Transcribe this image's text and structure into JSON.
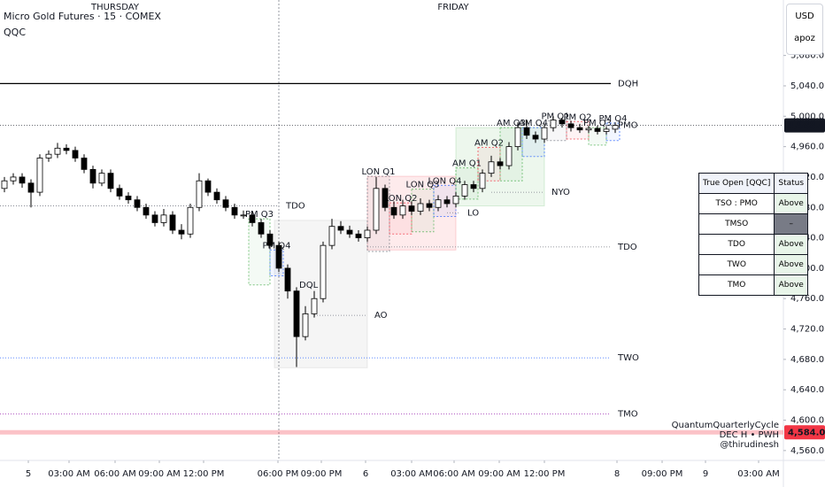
{
  "header": {
    "title": "Micro Gold Futures · 15 · COMEX",
    "indicator": "QQC",
    "currency": "USD",
    "user": "apoz"
  },
  "chart_data": {
    "type": "candlestick",
    "xlim": [
      -0.5,
      88
    ],
    "ylim": [
      4547,
      5153
    ],
    "up_color": "#ffffff",
    "down_color": "#000000",
    "xticks": [
      {
        "value": 2.7,
        "label": "5"
      },
      {
        "value": 7.3,
        "label": "03:00 AM"
      },
      {
        "value": 12.5,
        "label": "06:00 AM"
      },
      {
        "value": 17.5,
        "label": "09:00 AM"
      },
      {
        "value": 22.5,
        "label": "12:00 PM"
      },
      {
        "value": 30.9,
        "label": "06:00 PM"
      },
      {
        "value": 35.8,
        "label": "09:00 PM"
      },
      {
        "value": 40.8,
        "label": "6"
      },
      {
        "value": 46,
        "label": "03:00 AM"
      },
      {
        "value": 50.8,
        "label": "06:00 AM"
      },
      {
        "value": 55.9,
        "label": "09:00 AM"
      },
      {
        "value": 61,
        "label": "12:00 PM"
      },
      {
        "value": 69.2,
        "label": "8"
      },
      {
        "value": 74.3,
        "label": "09:00 PM"
      },
      {
        "value": 79.2,
        "label": "9"
      },
      {
        "value": 85.2,
        "label": "03:00 AM"
      }
    ],
    "yticks": [
      {
        "value": 4560,
        "label": "4,560.0"
      },
      {
        "value": 4600,
        "label": "4,600.0"
      },
      {
        "value": 4640,
        "label": "4,640.0"
      },
      {
        "value": 4680,
        "label": "4,680.0"
      },
      {
        "value": 4720,
        "label": "4,720.0"
      },
      {
        "value": 4760,
        "label": "4,760.0"
      },
      {
        "value": 4800,
        "label": "4,800.0"
      },
      {
        "value": 4840,
        "label": "4,840.0"
      },
      {
        "value": 4880,
        "label": "4,880.0"
      },
      {
        "value": 4920,
        "label": "4,920.0"
      },
      {
        "value": 4960,
        "label": "4,960.0"
      },
      {
        "value": 5000,
        "label": "5,000.0"
      },
      {
        "value": 5040,
        "label": "5,040.0"
      },
      {
        "value": 5080,
        "label": "5,080.0"
      }
    ],
    "day_labels": [
      {
        "label": "THURSDAY",
        "x": 12.5
      },
      {
        "label": "FRIDAY",
        "x": 50.7
      }
    ],
    "open": [
      4905,
      4915,
      4920,
      4912,
      4900,
      4945,
      4950,
      4958,
      4955,
      4945,
      4930,
      4912,
      4925,
      4905,
      4895,
      4890,
      4880,
      4870,
      4860,
      4870,
      4850,
      4845,
      4880,
      4915,
      4900,
      4890,
      4880,
      4870,
      4870,
      4860,
      4845,
      4830,
      4800,
      4770,
      4710,
      4740,
      4760,
      4830,
      4855,
      4850,
      4845,
      4840,
      4850,
      4905,
      4880,
      4870,
      4882,
      4875,
      4885,
      4880,
      4890,
      4885,
      4895,
      4910,
      4905,
      4925,
      4940,
      4935,
      4960,
      4985,
      4975,
      4970,
      4985,
      4995,
      4990,
      4985,
      4982,
      4984,
      4980,
      4983
    ],
    "high": [
      4920,
      4925,
      4925,
      4917,
      4950,
      4955,
      4965,
      4963,
      4960,
      4950,
      4935,
      4930,
      4930,
      4910,
      4900,
      4895,
      4885,
      4875,
      4878,
      4875,
      4858,
      4885,
      4925,
      4918,
      4905,
      4895,
      4885,
      4876,
      4874,
      4865,
      4850,
      4835,
      4805,
      4775,
      4750,
      4770,
      4835,
      4865,
      4862,
      4856,
      4850,
      4855,
      4920,
      4910,
      4888,
      4890,
      4888,
      4892,
      4890,
      4896,
      4895,
      4900,
      4915,
      4915,
      4930,
      4948,
      4945,
      4966,
      4992,
      4995,
      4980,
      4990,
      5000,
      4998,
      4994,
      4990,
      4988,
      4988,
      4987,
      4992
    ],
    "low": [
      4900,
      4910,
      4906,
      4880,
      4895,
      4940,
      4945,
      4950,
      4940,
      4925,
      4905,
      4908,
      4900,
      4890,
      4885,
      4875,
      4865,
      4855,
      4855,
      4845,
      4838,
      4840,
      4875,
      4895,
      4885,
      4875,
      4865,
      4865,
      4855,
      4840,
      4825,
      4795,
      4760,
      4670,
      4705,
      4735,
      4755,
      4825,
      4845,
      4840,
      4835,
      4835,
      4845,
      4875,
      4865,
      4865,
      4870,
      4870,
      4875,
      4875,
      4880,
      4880,
      4890,
      4900,
      4900,
      4920,
      4930,
      4930,
      4955,
      4970,
      4965,
      4965,
      4980,
      4985,
      4980,
      4978,
      4978,
      4976,
      4976,
      4978
    ],
    "close": [
      4915,
      4920,
      4912,
      4900,
      4945,
      4950,
      4958,
      4955,
      4945,
      4930,
      4912,
      4925,
      4905,
      4895,
      4890,
      4880,
      4870,
      4860,
      4870,
      4850,
      4845,
      4880,
      4915,
      4900,
      4890,
      4880,
      4870,
      4870,
      4860,
      4845,
      4830,
      4800,
      4770,
      4710,
      4740,
      4760,
      4830,
      4855,
      4850,
      4845,
      4840,
      4850,
      4905,
      4880,
      4870,
      4882,
      4875,
      4885,
      4880,
      4890,
      4885,
      4895,
      4910,
      4905,
      4925,
      4940,
      4935,
      4960,
      4985,
      4975,
      4970,
      4985,
      4995,
      4990,
      4985,
      4982,
      4984,
      4980,
      4983,
      4988
    ],
    "price_labels": [
      {
        "value": 4988,
        "label": "4,988.0",
        "color": "#131722",
        "style": "dotted"
      },
      {
        "value": 4584,
        "label": "4,584.0",
        "color": "#f23645",
        "style": "band"
      }
    ],
    "levels": [
      {
        "label": "DQH",
        "value": 5043,
        "x": [
          -0.5,
          68.5
        ],
        "color": "#000000",
        "style": "solid"
      },
      {
        "label": "TDO",
        "value": 4882,
        "x": [
          -0.5,
          31
        ],
        "color": "#787b86",
        "style": "dotted"
      },
      {
        "label": "TDO",
        "value": 4828,
        "x": [
          41,
          68.5
        ],
        "color": "#787b86",
        "style": "dotted"
      },
      {
        "label": "AO",
        "value": 4738,
        "x": [
          35,
          41
        ],
        "color": "#787b86",
        "style": "dotted"
      },
      {
        "label": "TWO",
        "value": 4682,
        "x": [
          -0.5,
          68.5
        ],
        "color": "#2962ff",
        "style": "dotted"
      },
      {
        "label": "TMO",
        "value": 4608,
        "x": [
          -0.5,
          68.5
        ],
        "color": "#9c27b0",
        "style": "dotted"
      },
      {
        "label": "NYO",
        "value": 4900,
        "x": [
          55,
          61
        ],
        "color": "#787b86",
        "style": "dotted"
      },
      {
        "label": "LO",
        "value": 4873,
        "x": [
          50,
          51.5
        ],
        "color": "#787b86",
        "style": "dotted"
      },
      {
        "label": "PMO",
        "value": 4988,
        "x": [
          68.5,
          68.5
        ],
        "color": "#131722",
        "style": "none"
      },
      {
        "label": "DQL",
        "value": 4778,
        "x": [
          32.5,
          32.5
        ],
        "color": "#131722",
        "style": "none"
      }
    ],
    "sessions": [
      {
        "color": "#9e9e9e",
        "x": [
          30.5,
          41
        ],
        "y": [
          4669,
          4863
        ]
      },
      {
        "color": "#f23645",
        "x": [
          41,
          51
        ],
        "y": [
          4824,
          4921
        ]
      },
      {
        "color": "#4caf50",
        "x": [
          51,
          61
        ],
        "y": [
          4882,
          4985
        ]
      }
    ],
    "quarters": [
      {
        "label": "PM Q3",
        "color": "#4caf50",
        "x": [
          27.6,
          30
        ],
        "y": [
          4778,
          4865
        ]
      },
      {
        "label": "PM Q4",
        "color": "#2962ff",
        "x": [
          30,
          31.5
        ],
        "y": [
          4790,
          4824
        ]
      },
      {
        "label": "LON Q1",
        "color": "#787b86",
        "x": [
          41,
          43.5
        ],
        "y": [
          4822,
          4921
        ]
      },
      {
        "label": "LON Q2",
        "color": "#f23645",
        "x": [
          43.5,
          46
        ],
        "y": [
          4845,
          4886
        ]
      },
      {
        "label": "LON Q3",
        "color": "#4caf50",
        "x": [
          46,
          48.5
        ],
        "y": [
          4848,
          4904
        ]
      },
      {
        "label": "LON Q4",
        "color": "#2962ff",
        "x": [
          48.5,
          51
        ],
        "y": [
          4868,
          4909
        ]
      },
      {
        "label": "AM Q1",
        "color": "#4caf50",
        "x": [
          51,
          53.5
        ],
        "y": [
          4891,
          4932
        ]
      },
      {
        "label": "AM Q2",
        "color": "#f23645",
        "x": [
          53.5,
          56
        ],
        "y": [
          4915,
          4959
        ]
      },
      {
        "label": "AM Q3",
        "color": "#4caf50",
        "x": [
          56,
          58.5
        ],
        "y": [
          4915,
          4985
        ]
      },
      {
        "label": "AM Q4",
        "color": "#2962ff",
        "x": [
          58.5,
          61
        ],
        "y": [
          4947,
          4985
        ]
      },
      {
        "label": "PM Q1",
        "color": "#787b86",
        "x": [
          61,
          63.5
        ],
        "y": [
          4968,
          4994
        ]
      },
      {
        "label": "PM Q2",
        "color": "#f23645",
        "x": [
          63.5,
          66
        ],
        "y": [
          4970,
          4993
        ]
      },
      {
        "label": "PM Q3",
        "color": "#4caf50",
        "x": [
          66,
          68
        ],
        "y": [
          4962,
          4985
        ]
      },
      {
        "label": "PM Q4",
        "color": "#2962ff",
        "x": [
          68,
          69.5
        ],
        "y": [
          4968,
          4991
        ]
      }
    ],
    "watermark": [
      "QuantumQuarterlyCycle",
      "DEC H • PWH",
      "@thirudinesh"
    ]
  },
  "table": {
    "columns": [
      "True Open [QQC]",
      "Status"
    ],
    "rows": [
      [
        "TSO : PMO",
        "Above"
      ],
      [
        "TMSO",
        "–"
      ],
      [
        "TDO",
        "Above"
      ],
      [
        "TWO",
        "Above"
      ],
      [
        "TMO",
        "Above"
      ]
    ]
  }
}
